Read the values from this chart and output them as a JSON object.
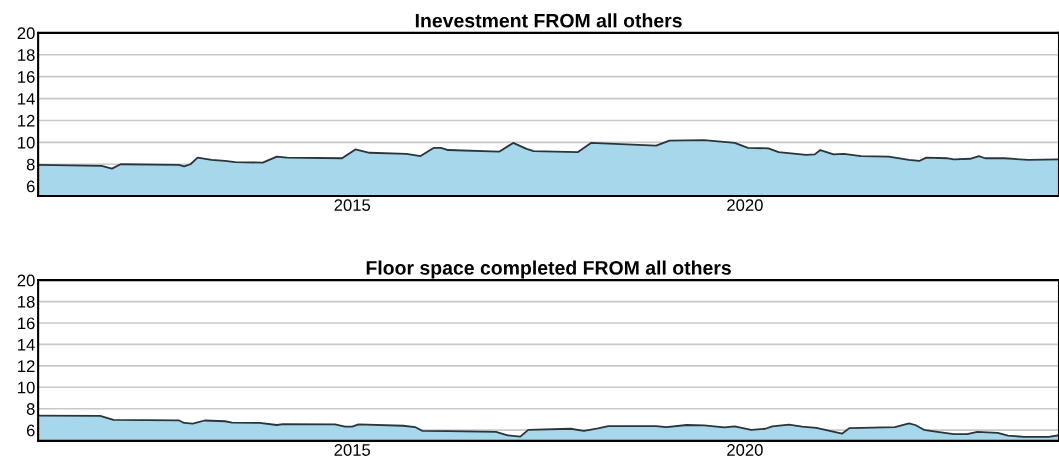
{
  "chart_data": [
    {
      "type": "area",
      "title": "Inevestment FROM all others",
      "x": [
        2011.0,
        2011.81,
        2011.94,
        2012.05,
        2012.79,
        2012.86,
        2012.94,
        2013.03,
        2013.21,
        2013.38,
        2013.51,
        2013.86,
        2014.04,
        2014.17,
        2014.87,
        2015.04,
        2015.22,
        2015.69,
        2015.87,
        2016.04,
        2016.13,
        2016.22,
        2016.87,
        2017.05,
        2017.22,
        2017.31,
        2017.87,
        2018.04,
        2018.87,
        2019.04,
        2019.48,
        2019.87,
        2020.04,
        2020.3,
        2020.43,
        2020.78,
        2020.89,
        2020.96,
        2021.13,
        2021.26,
        2021.48,
        2021.83,
        2022.09,
        2022.22,
        2022.31,
        2022.57,
        2022.66,
        2022.87,
        2022.98,
        2023.06,
        2023.3,
        2023.61,
        2024.0
      ],
      "series": [
        {
          "color": "#a6d7ea",
          "values": [
            7.95,
            7.85,
            7.6,
            8.0,
            7.95,
            7.8,
            8.0,
            8.6,
            8.4,
            8.3,
            8.2,
            8.15,
            8.7,
            8.6,
            8.55,
            9.35,
            9.05,
            8.95,
            8.75,
            9.5,
            9.5,
            9.3,
            9.15,
            9.95,
            9.4,
            9.2,
            9.1,
            9.95,
            9.7,
            10.15,
            10.2,
            9.95,
            9.5,
            9.45,
            9.1,
            8.85,
            8.9,
            9.3,
            8.9,
            8.95,
            8.75,
            8.7,
            8.4,
            8.3,
            8.6,
            8.55,
            8.45,
            8.5,
            8.75,
            8.55,
            8.55,
            8.4,
            8.45
          ]
        }
      ],
      "xlim": [
        2011,
        2024
      ],
      "xticks": [
        2015,
        2020
      ],
      "ylim": [
        5.1,
        20
      ],
      "yticks": [
        6,
        8,
        10,
        12,
        14,
        16,
        18,
        20
      ],
      "grid": "y"
    },
    {
      "type": "area",
      "title": "Floor space completed FROM all others",
      "x": [
        2011.0,
        2011.79,
        2011.96,
        2012.79,
        2012.86,
        2012.97,
        2013.12,
        2013.38,
        2013.47,
        2013.82,
        2014.04,
        2014.12,
        2014.78,
        2014.91,
        2015.0,
        2015.08,
        2015.65,
        2015.8,
        2015.89,
        2016.22,
        2016.83,
        2016.98,
        2017.14,
        2017.24,
        2017.78,
        2017.95,
        2018.13,
        2018.26,
        2018.87,
        2019.0,
        2019.26,
        2019.48,
        2019.74,
        2019.87,
        2020.08,
        2020.26,
        2020.35,
        2020.56,
        2020.73,
        2020.91,
        2021.08,
        2021.24,
        2021.33,
        2021.48,
        2021.91,
        2022.09,
        2022.17,
        2022.28,
        2022.43,
        2022.66,
        2022.83,
        2022.96,
        2023.22,
        2023.35,
        2023.56,
        2023.87,
        2024.0
      ],
      "series": [
        {
          "color": "#a6d7ea",
          "values": [
            7.35,
            7.33,
            6.95,
            6.92,
            6.67,
            6.6,
            6.9,
            6.83,
            6.7,
            6.67,
            6.48,
            6.57,
            6.54,
            6.32,
            6.32,
            6.54,
            6.41,
            6.29,
            5.94,
            5.9,
            5.84,
            5.52,
            5.4,
            6.03,
            6.13,
            5.94,
            6.16,
            6.38,
            6.38,
            6.29,
            6.48,
            6.44,
            6.25,
            6.35,
            6.03,
            6.13,
            6.35,
            6.51,
            6.32,
            6.22,
            5.94,
            5.68,
            6.19,
            6.22,
            6.29,
            6.63,
            6.48,
            6.03,
            5.87,
            5.62,
            5.62,
            5.84,
            5.75,
            5.49,
            5.37,
            5.37,
            5.52
          ]
        }
      ],
      "xlim": [
        2011,
        2024
      ],
      "xticks": [
        2015,
        2020
      ],
      "ylim": [
        5,
        20
      ],
      "yticks": [
        6,
        8,
        10,
        12,
        14,
        16,
        18,
        20
      ],
      "grid": "y"
    }
  ]
}
